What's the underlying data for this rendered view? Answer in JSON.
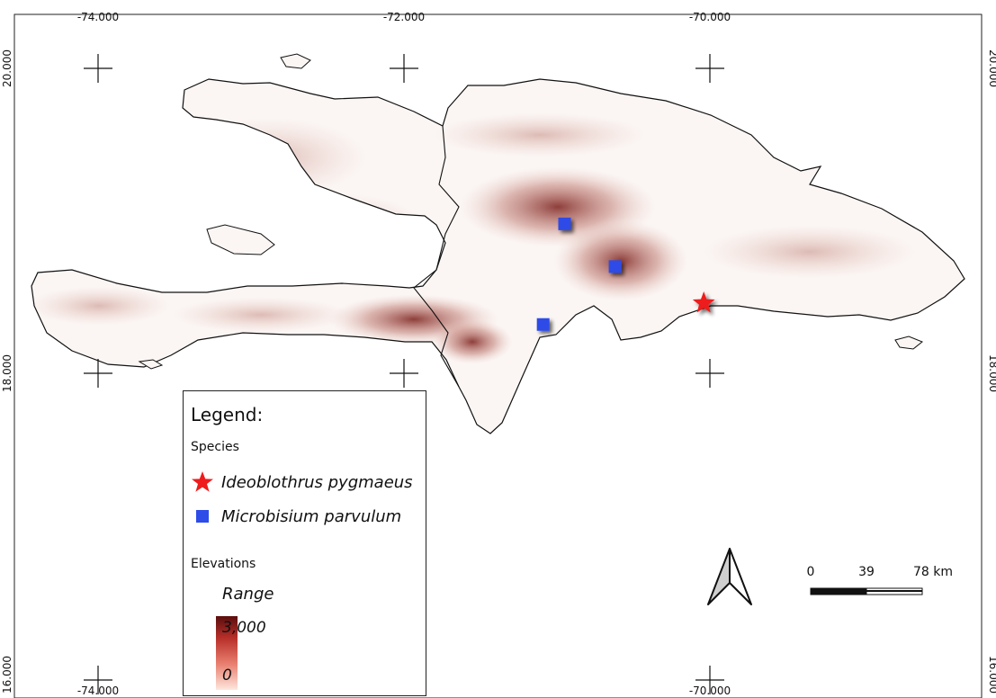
{
  "map": {
    "grid_labels": {
      "lon": [
        "-74.000",
        "-72.000",
        "-70.000"
      ],
      "lat": [
        "20.000",
        "18.000",
        "16.000"
      ]
    },
    "colors": {
      "relief_dark": "#7a1e1a",
      "relief_light": "#e8c3b9",
      "land": "#fbf6f4",
      "coast": "#111111",
      "microbisium": "#2d4ce8",
      "ideoblothrus": "#ee1c1c"
    },
    "markers": [
      {
        "species": "Microbisium parvulum",
        "lon": -70.95,
        "lat": 18.98
      },
      {
        "species": "Microbisium parvulum",
        "lon": -70.62,
        "lat": 18.7
      },
      {
        "species": "Microbisium parvulum",
        "lon": -71.09,
        "lat": 18.32
      },
      {
        "species": "Ideoblothrus pygmaeus",
        "lon": -70.04,
        "lat": 18.46
      }
    ],
    "north_arrow_icon": "north-arrow-icon"
  },
  "legend": {
    "title": "Legend:",
    "species_heading": "Species",
    "species": [
      {
        "name": "Ideoblothrus pygmaeus",
        "icon": "red-star-icon",
        "color": "#ee1c1c"
      },
      {
        "name": "Microbisium parvulum",
        "icon": "blue-square-icon",
        "color": "#2d4ce8"
      }
    ],
    "elevation_heading": "Elevations",
    "range_label": "Range",
    "range_max": "3,000",
    "range_min": "0"
  },
  "scale_bar": {
    "labels": [
      "0",
      "39",
      "78 km"
    ]
  }
}
